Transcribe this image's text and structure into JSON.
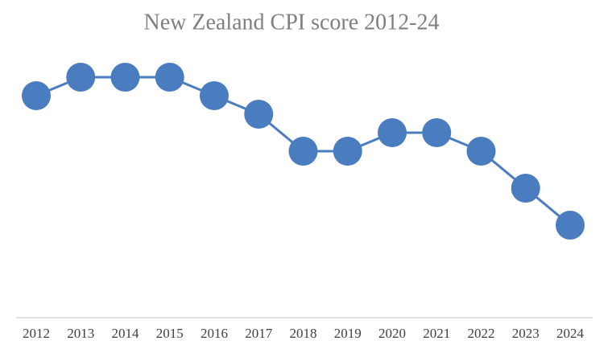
{
  "chart_data": {
    "type": "line",
    "title": "New Zealand CPI score 2012-24",
    "categories": [
      "2012",
      "2013",
      "2014",
      "2015",
      "2016",
      "2017",
      "2018",
      "2019",
      "2020",
      "2021",
      "2022",
      "2023",
      "2024"
    ],
    "values": [
      90,
      91,
      91,
      91,
      90,
      89,
      87,
      87,
      88,
      88,
      87,
      85,
      83
    ],
    "color": "#4a7cc0",
    "ylim": [
      78,
      93
    ]
  }
}
